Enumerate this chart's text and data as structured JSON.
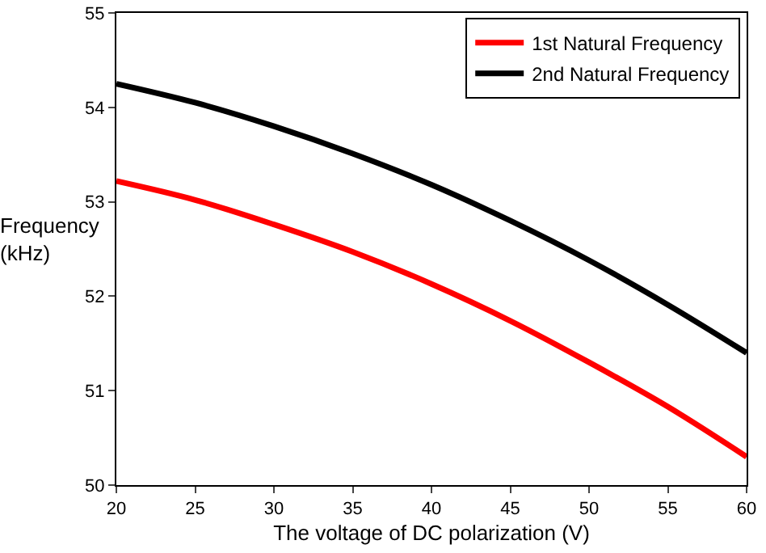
{
  "chart_data": {
    "type": "line",
    "xlabel": "The voltage of DC polarization (V)",
    "ylabel": "Frequency (kHz)",
    "x": [
      20,
      25,
      30,
      35,
      40,
      45,
      50,
      55,
      60
    ],
    "series": [
      {
        "name": "1st Natural Frequency",
        "color": "#ff0000",
        "values": [
          53.22,
          53.02,
          52.76,
          52.47,
          52.13,
          51.74,
          51.3,
          50.83,
          50.3
        ]
      },
      {
        "name": "2nd Natural Frequency",
        "color": "#000000",
        "values": [
          54.25,
          54.05,
          53.8,
          53.51,
          53.18,
          52.8,
          52.38,
          51.91,
          51.4
        ]
      }
    ],
    "xlim": [
      20,
      60
    ],
    "xticks": [
      20,
      25,
      30,
      35,
      40,
      45,
      50,
      55,
      60
    ],
    "ylim": [
      50,
      55
    ],
    "yticks": [
      50,
      51,
      52,
      53,
      54,
      55
    ],
    "grid": false,
    "legend": "top right",
    "marker": "none",
    "line_style": "solid"
  }
}
